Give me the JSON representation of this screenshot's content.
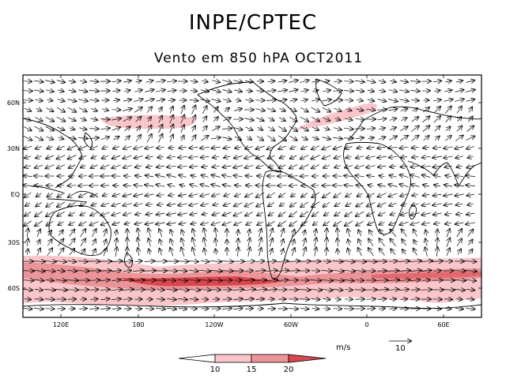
{
  "title": "INPE/CPTEC",
  "subtitle": "Vento em 850 hPA OCT2011",
  "lat_ticks": [
    "60N",
    "30N",
    "EQ",
    "30S",
    "60S"
  ],
  "lon_ticks": [
    "120E",
    "180",
    "120W",
    "60W",
    "0",
    "60E"
  ],
  "units": "m/s",
  "reference_vector": "10",
  "colorbar": {
    "ticks": [
      "10",
      "15",
      "20"
    ],
    "colors": [
      "#ffffff",
      "#f9c7cb",
      "#ec9599",
      "#d9484e"
    ]
  },
  "colors": {
    "land": "#000000",
    "shade_light": "#f9c7cb",
    "shade_mid": "#ec9599",
    "shade_dark": "#d9484e"
  }
}
